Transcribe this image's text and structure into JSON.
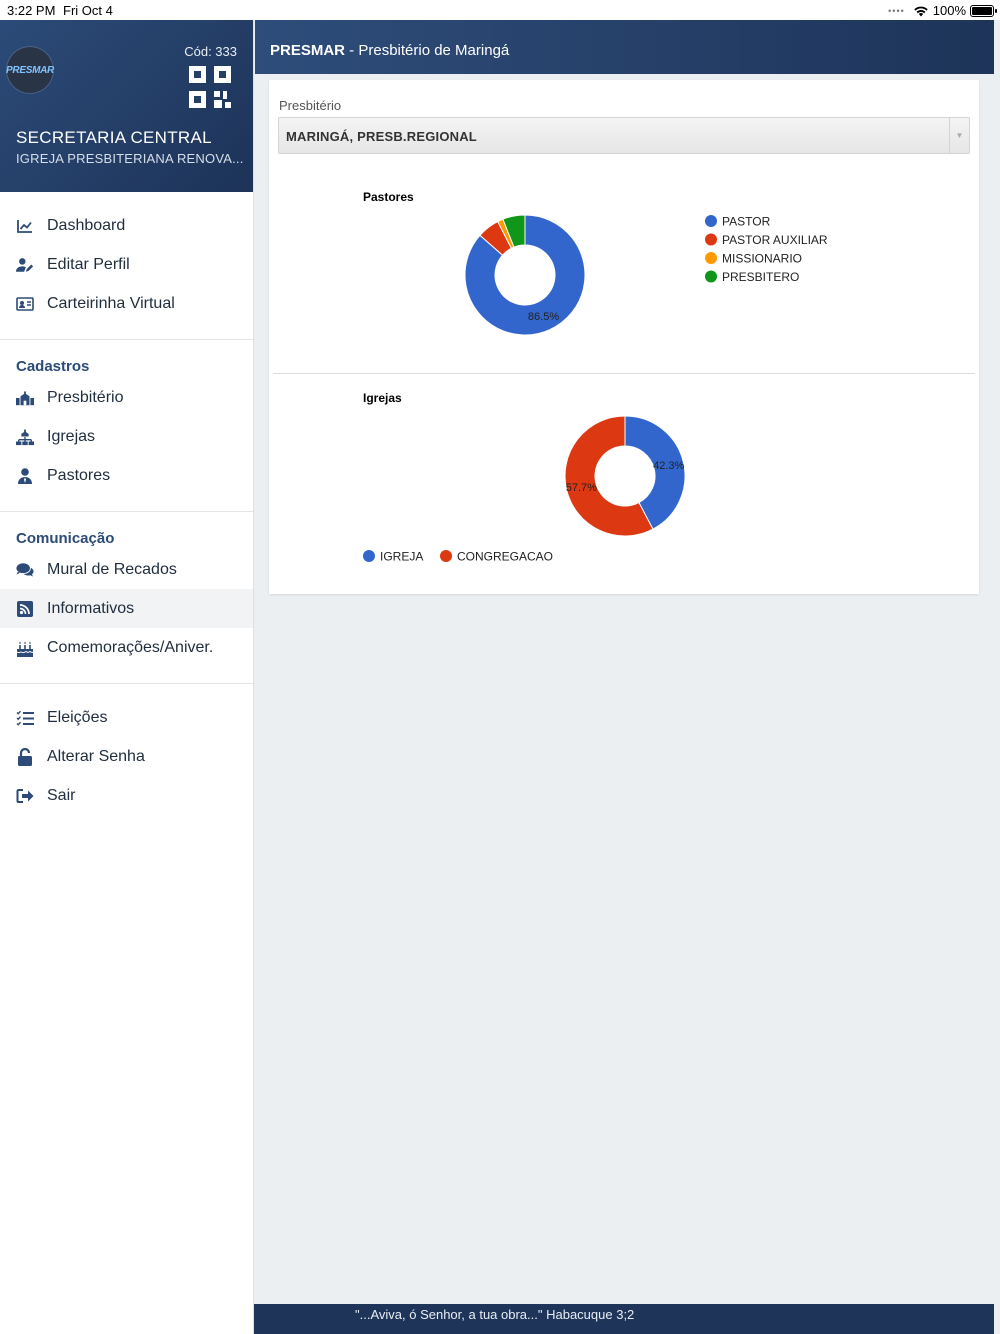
{
  "status": {
    "time": "3:22 PM",
    "date": "Fri Oct 4",
    "battery": "100%"
  },
  "profile": {
    "logo_text": "PRESMAR",
    "code": "Cód: 333",
    "title": "SECRETARIA CENTRAL",
    "subtitle": "IGREJA PRESBITERIANA RENOVA..."
  },
  "menu": {
    "main": [
      {
        "label": "Dashboard",
        "icon": "chart-line-icon"
      },
      {
        "label": "Editar Perfil",
        "icon": "user-edit-icon"
      },
      {
        "label": "Carteirinha Virtual",
        "icon": "id-card-icon"
      }
    ],
    "cadastros_title": "Cadastros",
    "cadastros": [
      {
        "label": "Presbitério",
        "icon": "church-icon"
      },
      {
        "label": "Igrejas",
        "icon": "sitemap-icon"
      },
      {
        "label": "Pastores",
        "icon": "user-tie-icon"
      }
    ],
    "comunicacao_title": "Comunicação",
    "comunicacao": [
      {
        "label": "Mural de Recados",
        "icon": "comments-icon"
      },
      {
        "label": "Informativos",
        "icon": "rss-icon"
      },
      {
        "label": "Comemorações/Aniver.",
        "icon": "birthday-cake-icon"
      }
    ],
    "other": [
      {
        "label": "Eleições",
        "icon": "tasks-icon"
      },
      {
        "label": "Alterar Senha",
        "icon": "unlock-icon"
      },
      {
        "label": "Sair",
        "icon": "sign-out-icon"
      }
    ]
  },
  "header": {
    "brand": "PRESMAR",
    "title": " - Presbitério de Maringá"
  },
  "filter": {
    "label": "Presbitério",
    "value": "MARINGÁ, PRESB.REGIONAL"
  },
  "chart_data": [
    {
      "type": "pie",
      "title": "Pastores",
      "donut": true,
      "legend": "right",
      "categories": [
        "PASTOR",
        "PASTOR AUXILIAR",
        "MISSIONARIO",
        "PRESBITERO"
      ],
      "values": [
        86.5,
        6.0,
        1.5,
        6.0
      ],
      "colors": [
        "#3366cc",
        "#dc3912",
        "#ff9900",
        "#109618"
      ],
      "data_labels": [
        "86.5%"
      ]
    },
    {
      "type": "pie",
      "title": "Igrejas",
      "donut": true,
      "legend": "bottom",
      "categories": [
        "IGREJA",
        "CONGREGACAO"
      ],
      "values": [
        42.3,
        57.7
      ],
      "colors": [
        "#3366cc",
        "#dc3912"
      ],
      "data_labels": [
        "42.3%",
        "57.7%"
      ]
    }
  ],
  "footer": {
    "verse": "\"...Aviva, ó Senhor, a tua obra...\" Habacuque 3;2"
  }
}
